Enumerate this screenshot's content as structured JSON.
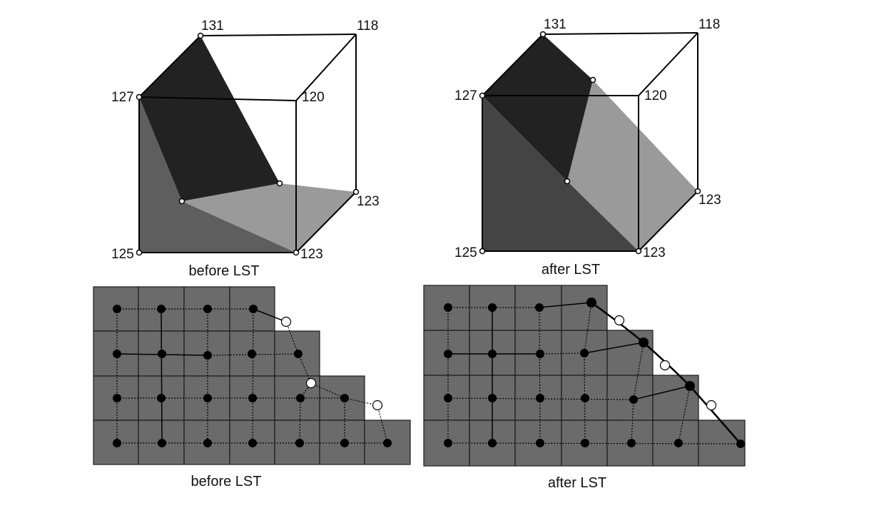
{
  "panels": {
    "top_left": {
      "caption": "before LST",
      "vertex_labels": {
        "v131": "131",
        "v118": "118",
        "v127": "127",
        "v120": "120",
        "v123_right": "123",
        "v125": "125",
        "v123_bottom": "123"
      }
    },
    "top_right": {
      "caption": "after LST",
      "vertex_labels": {
        "v131": "131",
        "v118": "118",
        "v127": "127",
        "v120": "120",
        "v123_right": "123",
        "v125": "125",
        "v123_bottom": "123"
      }
    },
    "bottom_left": {
      "caption": "before LST"
    },
    "bottom_right": {
      "caption": "after LST"
    }
  },
  "colors": {
    "dark_face": "#222222",
    "mid_face": "#5e5e5e",
    "light_face": "#9a9a9a",
    "grid_cell": "#6b6b6b",
    "line": "#000000",
    "open_node": "#ffffff"
  }
}
